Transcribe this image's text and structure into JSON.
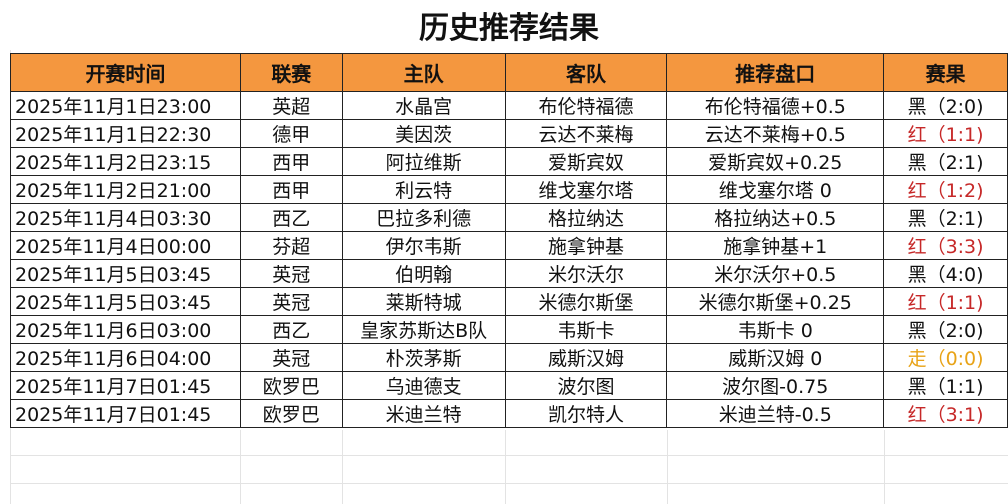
{
  "title": "历史推荐结果",
  "columns": [
    "开赛时间",
    "联赛",
    "主队",
    "客队",
    "推荐盘口",
    "赛果"
  ],
  "colors": {
    "header_bg": "#f4973f",
    "红": "#c62828",
    "黑": "#111111",
    "走": "#e8a317"
  },
  "rows": [
    {
      "time": "2025年11月1日23:00",
      "league": "英超",
      "home": "水晶宫",
      "away": "布伦特福德",
      "pick": "布伦特福德+0.5",
      "result": "黑（2:0)",
      "status": "黑"
    },
    {
      "time": "2025年11月1日22:30",
      "league": "德甲",
      "home": "美因茨",
      "away": "云达不莱梅",
      "pick": "云达不莱梅+0.5",
      "result": "红（1:1)",
      "status": "红"
    },
    {
      "time": "2025年11月2日23:15",
      "league": "西甲",
      "home": "阿拉维斯",
      "away": "爱斯宾奴",
      "pick": "爱斯宾奴+0.25",
      "result": "黑（2:1)",
      "status": "黑"
    },
    {
      "time": "2025年11月2日21:00",
      "league": "西甲",
      "home": "利云特",
      "away": "维戈塞尔塔",
      "pick": "维戈塞尔塔 0",
      "result": "红（1:2)",
      "status": "红"
    },
    {
      "time": "2025年11月4日03:30",
      "league": "西乙",
      "home": "巴拉多利德",
      "away": "格拉纳达",
      "pick": "格拉纳达+0.5",
      "result": "黑（2:1)",
      "status": "黑"
    },
    {
      "time": "2025年11月4日00:00",
      "league": "芬超",
      "home": "伊尔韦斯",
      "away": "施拿钟基",
      "pick": "施拿钟基+1",
      "result": "红（3:3)",
      "status": "红"
    },
    {
      "time": "2025年11月5日03:45",
      "league": "英冠",
      "home": "伯明翰",
      "away": "米尔沃尔",
      "pick": "米尔沃尔+0.5",
      "result": "黑（4:0)",
      "status": "黑"
    },
    {
      "time": "2025年11月5日03:45",
      "league": "英冠",
      "home": "莱斯特城",
      "away": "米德尔斯堡",
      "pick": "米德尔斯堡+0.25",
      "result": "红（1:1)",
      "status": "红"
    },
    {
      "time": "2025年11月6日03:00",
      "league": "西乙",
      "home": "皇家苏斯达B队",
      "away": "韦斯卡",
      "pick": "韦斯卡 0",
      "result": "黑（2:0)",
      "status": "黑"
    },
    {
      "time": "2025年11月6日04:00",
      "league": "英冠",
      "home": "朴茨茅斯",
      "away": "威斯汉姆",
      "pick": "威斯汉姆 0",
      "result": "走（0:0)",
      "status": "走"
    },
    {
      "time": "2025年11月7日01:45",
      "league": "欧罗巴",
      "home": "乌迪德支",
      "away": "波尔图",
      "pick": "波尔图-0.75",
      "result": "黑（1:1)",
      "status": "黑"
    },
    {
      "time": "2025年11月7日01:45",
      "league": "欧罗巴",
      "home": "米迪兰特",
      "away": "凯尔特人",
      "pick": "米迪兰特-0.5",
      "result": "红（3:1)",
      "status": "红"
    }
  ]
}
